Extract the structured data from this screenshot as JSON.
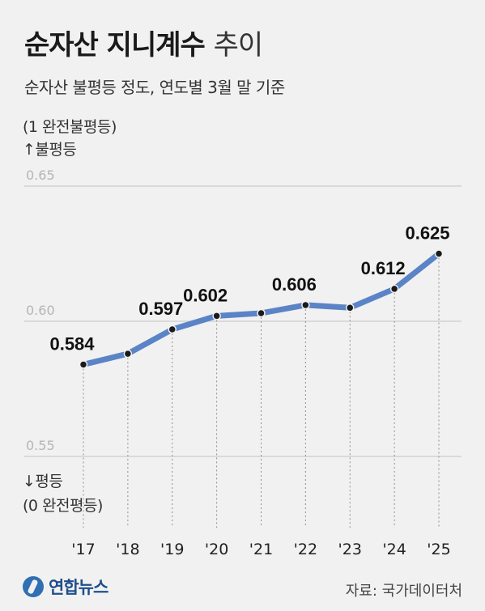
{
  "header": {
    "title_bold": "순자산 지니계수",
    "title_light": "추이",
    "subtitle": "순자산 불평등 정도, 연도별 3월 말 기준"
  },
  "legend_notes": {
    "top_scale": "(1 완전불평등)",
    "top_direction": "↑불평등",
    "bottom_direction": "↓평등",
    "bottom_scale": "(0 완전평등)"
  },
  "footer": {
    "logo": "연합뉴스",
    "source": "자료: 국가데이터처"
  },
  "colors": {
    "line": "#5b84c7",
    "point": "#1a1a1a",
    "grid": "#d3d3d3",
    "axis_label": "#b5b5b5"
  },
  "chart_data": {
    "type": "line",
    "title": "순자산 지니계수 추이",
    "subtitle": "순자산 불평등 정도, 연도별 3월 말 기준",
    "categories": [
      "'17",
      "'18",
      "'19",
      "'20",
      "'21",
      "'22",
      "'23",
      "'24",
      "'25"
    ],
    "values": [
      0.584,
      0.588,
      0.597,
      0.602,
      0.603,
      0.606,
      0.605,
      0.612,
      0.625
    ],
    "data_labels": [
      "0.584",
      "",
      "0.597",
      "0.602",
      "",
      "0.606",
      "",
      "0.612",
      "0.625"
    ],
    "y_ticks": [
      "0.65",
      "0.60",
      "0.55"
    ],
    "ylim": [
      0.55,
      0.65
    ],
    "grid": true,
    "source": "자료: 국가데이터처"
  }
}
